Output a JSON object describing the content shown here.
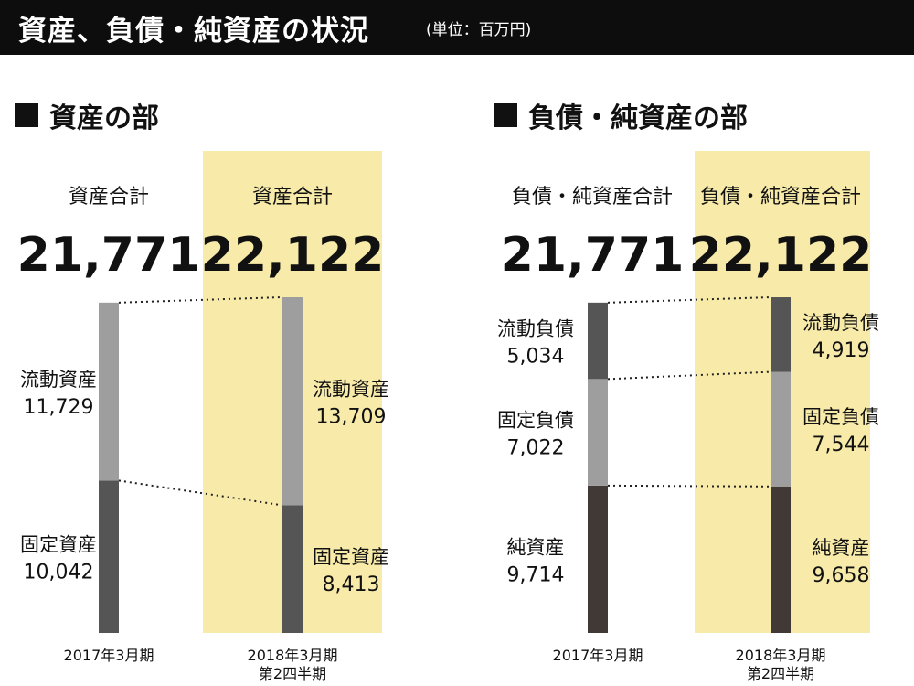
{
  "header": {
    "title": "資産、負債・純資産の状況",
    "unit": "(単位：百万円)"
  },
  "sections": {
    "assets_title": "資産の部",
    "liabilities_title": "負債・純資産の部"
  },
  "colors": {
    "highlight": "#f8ebaa",
    "light_gray": "#9e9e9e",
    "dark_gray": "#555555",
    "darkest": "#403936"
  },
  "chart_data": [
    {
      "type": "bar",
      "stacked": true,
      "title": "資産の部",
      "categories": [
        "2017年3月期",
        "2018年3月期\n第2四半期"
      ],
      "totals": {
        "label": "資産合計",
        "values": [
          21771,
          22122
        ],
        "display": [
          "21,771",
          "22,122"
        ]
      },
      "series": [
        {
          "name": "固定資産",
          "values": [
            10042,
            8413
          ],
          "display": [
            "10,042",
            "8,413"
          ],
          "color": "#555555"
        },
        {
          "name": "流動資産",
          "values": [
            11729,
            13709
          ],
          "display": [
            "11,729",
            "13,709"
          ],
          "color": "#9e9e9e"
        }
      ],
      "highlight_category": "2018年3月期\n第2四半期"
    },
    {
      "type": "bar",
      "stacked": true,
      "title": "負債・純資産の部",
      "categories": [
        "2017年3月期",
        "2018年3月期\n第2四半期"
      ],
      "totals": {
        "label": "負債・純資産合計",
        "values": [
          21771,
          22122
        ],
        "display": [
          "21,771",
          "22,122"
        ]
      },
      "series": [
        {
          "name": "純資産",
          "values": [
            9714,
            9658
          ],
          "display": [
            "9,714",
            "9,658"
          ],
          "color": "#403936"
        },
        {
          "name": "固定負債",
          "values": [
            7022,
            7544
          ],
          "display": [
            "7,022",
            "7,544"
          ],
          "color": "#9e9e9e"
        },
        {
          "name": "流動負債",
          "values": [
            5034,
            4919
          ],
          "display": [
            "5,034",
            "4,919"
          ],
          "color": "#555555"
        }
      ],
      "highlight_category": "2018年3月期\n第2四半期"
    }
  ]
}
